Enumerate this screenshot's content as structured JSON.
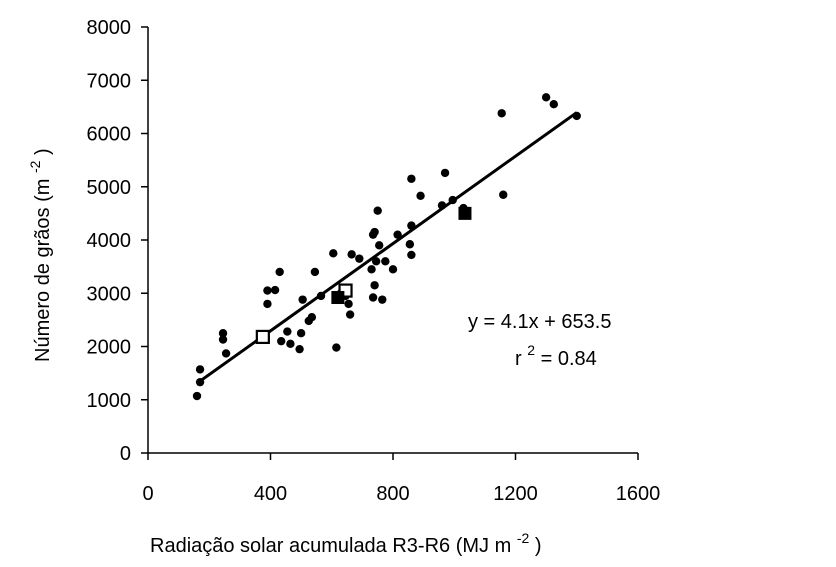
{
  "chart_data": {
    "type": "scatter",
    "xlabel": "Radiação solar acumulada R3-R6 (MJ m",
    "xlabel_sup": "-2",
    "xlabel_end": ")",
    "ylabel": "Número de grãos  (m",
    "ylabel_sup": "-2",
    "ylabel_end": ")",
    "xlim": [
      0,
      1600
    ],
    "ylim": [
      0,
      8000
    ],
    "xticks": [
      "0",
      "400",
      "800",
      "1200",
      "1600"
    ],
    "yticks": [
      "0",
      "1000",
      "2000",
      "3000",
      "4000",
      "5000",
      "6000",
      "7000",
      "8000"
    ],
    "grid": false,
    "series": [
      {
        "marker": "filled-circle",
        "color": "#000000",
        "points": [
          [
            160,
            1070
          ],
          [
            170,
            1570
          ],
          [
            170,
            1330
          ],
          [
            245,
            2250
          ],
          [
            245,
            2130
          ],
          [
            255,
            1870
          ],
          [
            390,
            3050
          ],
          [
            390,
            2800
          ],
          [
            415,
            3060
          ],
          [
            430,
            3400
          ],
          [
            435,
            2100
          ],
          [
            455,
            2280
          ],
          [
            465,
            2050
          ],
          [
            495,
            1950
          ],
          [
            500,
            2250
          ],
          [
            505,
            2880
          ],
          [
            525,
            2480
          ],
          [
            535,
            2550
          ],
          [
            545,
            3400
          ],
          [
            565,
            2950
          ],
          [
            605,
            3750
          ],
          [
            615,
            1980
          ],
          [
            630,
            3000
          ],
          [
            645,
            2950
          ],
          [
            655,
            2800
          ],
          [
            660,
            2600
          ],
          [
            665,
            3730
          ],
          [
            690,
            3650
          ],
          [
            730,
            3450
          ],
          [
            735,
            4100
          ],
          [
            740,
            4150
          ],
          [
            740,
            3150
          ],
          [
            735,
            2920
          ],
          [
            745,
            3600
          ],
          [
            750,
            4550
          ],
          [
            755,
            3900
          ],
          [
            765,
            2880
          ],
          [
            775,
            3600
          ],
          [
            800,
            3450
          ],
          [
            815,
            4100
          ],
          [
            855,
            3920
          ],
          [
            860,
            4270
          ],
          [
            860,
            3720
          ],
          [
            860,
            5150
          ],
          [
            890,
            4830
          ],
          [
            960,
            4650
          ],
          [
            970,
            5260
          ],
          [
            995,
            4750
          ],
          [
            1030,
            4600
          ],
          [
            1155,
            6380
          ],
          [
            1160,
            4850
          ],
          [
            1300,
            6680
          ],
          [
            1325,
            6550
          ],
          [
            1400,
            6330
          ]
        ]
      },
      {
        "marker": "open-square",
        "color": "#000000",
        "points": [
          [
            375,
            2180
          ],
          [
            645,
            3050
          ]
        ]
      },
      {
        "marker": "filled-square",
        "color": "#000000",
        "points": [
          [
            620,
            2920
          ],
          [
            1035,
            4500
          ]
        ]
      }
    ],
    "trendline": {
      "slope": 4.1,
      "intercept": 653.5,
      "x_range": [
        160,
        1400
      ]
    },
    "annotations": {
      "equation": "y = 4.1x + 653.5",
      "r2_prefix": "r",
      "r2_sup": "2",
      "r2_value": " = 0.84"
    }
  }
}
